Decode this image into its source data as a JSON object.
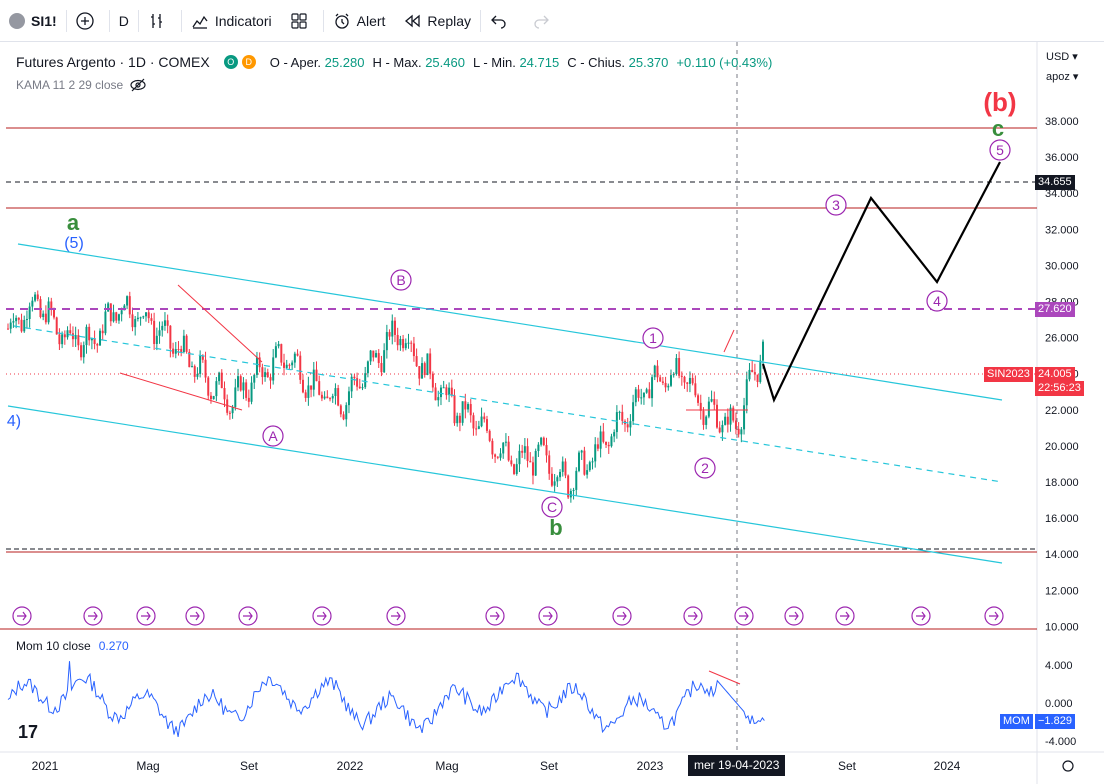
{
  "toolbar": {
    "symbol": "SI1!",
    "interval": "D",
    "indicators_label": "Indicatori",
    "alert_label": "Alert",
    "replay_label": "Replay"
  },
  "legend": {
    "title": "Futures Argento · 1D · COMEX",
    "badge_o": "O",
    "badge_d": "D",
    "open_label": "O - Aper.",
    "open": "25.280",
    "high_label": "H - Max.",
    "high": "25.460",
    "low_label": "L - Min.",
    "low": "24.715",
    "close_label": "C - Chius.",
    "close": "25.370",
    "change": "+0.110 (+0.43%)",
    "indicator": "KAMA 11 2 29 close"
  },
  "axis": {
    "currency": "USD",
    "scale": "apoz",
    "price_ticks": [
      "38.000",
      "36.000",
      "34.000",
      "32.000",
      "30.000",
      "28.000",
      "26.000",
      "24.000",
      "22.000",
      "20.000",
      "18.000",
      "16.000",
      "14.000",
      "12.000",
      "10.000"
    ],
    "mom_ticks": [
      "4.000",
      "0.000",
      "-4.000"
    ],
    "time_ticks": [
      "2021",
      "Mag",
      "Set",
      "2022",
      "Mag",
      "Set",
      "2023",
      "Set",
      "2024"
    ],
    "crosshair_date": "mer 19-04-2023"
  },
  "tags": {
    "level_34": "34.655",
    "level_27": "27.620",
    "symbol_tag": "SIN2023",
    "price_tag": "24.005",
    "countdown": "22:56:23",
    "mom_tag": "MOM",
    "mom_value": "−1.829"
  },
  "momentum": {
    "label": "Mom 10 close",
    "value": "0.270"
  },
  "waves": {
    "a": "a",
    "a5": "(5)",
    "left4": "4)",
    "A": "A",
    "B": "B",
    "C": "C",
    "b": "b",
    "w1": "1",
    "w2": "2",
    "w3": "3",
    "w4": "4",
    "w5": "5",
    "c": "c",
    "bb": "(b)"
  },
  "colors": {
    "up": "#089981",
    "down": "#f23645",
    "channel": "#26c6da",
    "wave_circle": "#9c27b0",
    "wave_green": "#388e3c",
    "wave_blue": "#2962ff",
    "wave_red": "#f23645",
    "hline_red": "#b71c1c",
    "dashed_purple": "#ab47bc",
    "projection": "#000000",
    "mom_line": "#2962ff"
  },
  "chart_data": [
    {
      "type": "line",
      "x": [
        "2021-01",
        "2021-02",
        "2021-03",
        "2021-04",
        "2021-05",
        "2021-06",
        "2021-07",
        "2021-08",
        "2021-09",
        "2021-10",
        "2021-11",
        "2021-12",
        "2022-01",
        "2022-02",
        "2022-03",
        "2022-04",
        "2022-05",
        "2022-06",
        "2022-07",
        "2022-08",
        "2022-09",
        "2022-10",
        "2022-11",
        "2022-12",
        "2023-01",
        "2023-02",
        "2023-03",
        "2023-04"
      ],
      "series": [
        {
          "values": [
            26.5,
            28.0,
            26.0,
            25.8,
            27.8,
            27.0,
            25.5,
            23.8,
            22.5,
            24.0,
            25.0,
            23.0,
            22.5,
            24.5,
            26.5,
            24.0,
            22.0,
            21.0,
            19.0,
            19.5,
            18.0,
            19.5,
            21.5,
            23.5,
            24.0,
            22.0,
            21.0,
            25.4
          ]
        }
      ],
      "projection": {
        "x": [
          "2023-04",
          "2023-05",
          "2023-09",
          "2023-12",
          "2024-03"
        ],
        "values": [
          24.0,
          22.5,
          33.8,
          29.0,
          35.5
        ]
      },
      "ylim": [
        10,
        39
      ]
    },
    {
      "type": "line",
      "x": [
        "2021",
        "2022",
        "2023"
      ],
      "series": [
        {
          "values": [
            0.5,
            -0.5,
            1.0
          ]
        }
      ],
      "ylim": [
        -4.5,
        5
      ]
    }
  ]
}
